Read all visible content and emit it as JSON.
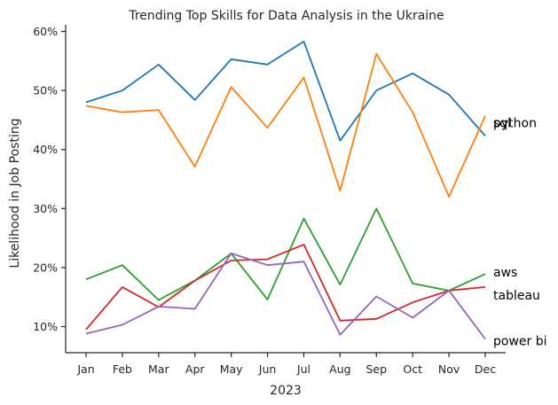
{
  "chart_data": {
    "type": "line",
    "title": "Trending Top Skills for Data Analysis in the Ukraine",
    "xlabel": "2023",
    "ylabel": "Likelihood in Job Posting",
    "categories": [
      "Jan",
      "Feb",
      "Mar",
      "Apr",
      "May",
      "Jun",
      "Jul",
      "Aug",
      "Sep",
      "Oct",
      "Nov",
      "Dec"
    ],
    "ylim": [
      5.5,
      61
    ],
    "yticks": [
      10,
      20,
      30,
      40,
      50,
      60
    ],
    "ytick_labels": [
      "10%",
      "20%",
      "30%",
      "40%",
      "50%",
      "60%"
    ],
    "grid": false,
    "legend": "none",
    "series": [
      {
        "name": "python",
        "color": "#1f77b4",
        "values": [
          48.0,
          50.0,
          54.4,
          48.4,
          55.3,
          54.4,
          58.3,
          41.5,
          50.0,
          52.9,
          49.3,
          42.3
        ]
      },
      {
        "name": "sql",
        "color": "#ff7f0e",
        "values": [
          47.4,
          46.3,
          46.7,
          37.1,
          50.6,
          43.7,
          52.2,
          33.0,
          56.2,
          46.3,
          32.0,
          45.7
        ]
      },
      {
        "name": "aws",
        "color": "#2ca02c",
        "values": [
          18.0,
          20.4,
          14.5,
          17.8,
          22.4,
          14.6,
          28.3,
          17.1,
          30.0,
          17.3,
          16.1,
          18.9
        ]
      },
      {
        "name": "tableau",
        "color": "#d62728",
        "values": [
          9.5,
          16.7,
          13.3,
          17.8,
          21.2,
          21.4,
          23.9,
          11.0,
          11.3,
          14.1,
          16.1,
          16.7
        ]
      },
      {
        "name": "power bi",
        "color": "#9467bd",
        "values": [
          8.8,
          10.3,
          13.4,
          13.0,
          22.4,
          20.4,
          21.0,
          8.6,
          15.1,
          11.5,
          16.1,
          7.9
        ]
      }
    ]
  }
}
